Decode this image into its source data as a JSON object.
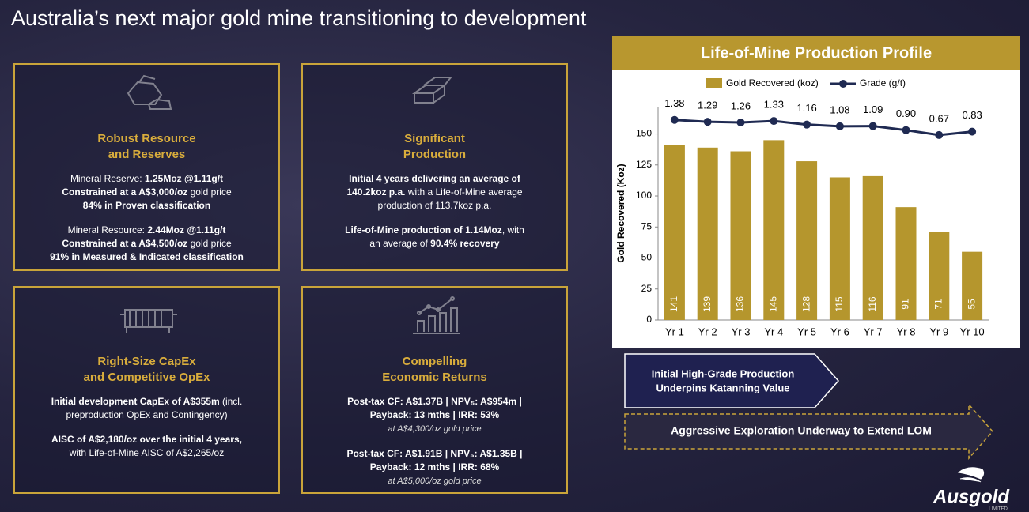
{
  "header": {
    "title": "Australia’s next major gold mine transitioning to development"
  },
  "cards": [
    {
      "title_lines": [
        "Robust Resource",
        "and Reserves"
      ],
      "paragraphs": [
        [
          [
            {
              "text": "Mineral Reserve: "
            },
            {
              "text": "1.25Moz @1.11g/t",
              "bold": true
            }
          ],
          [
            {
              "text": "Constrained at a A$3,000/oz",
              "bold": true
            },
            {
              "text": " gold price"
            }
          ],
          [
            {
              "text": "84% in Proven classification",
              "bold": true
            }
          ]
        ],
        [
          [
            {
              "text": "Mineral Resource: "
            },
            {
              "text": "2.44Moz @1.11g/t",
              "bold": true
            }
          ],
          [
            {
              "text": "Constrained at a A$4,500/oz",
              "bold": true
            },
            {
              "text": " gold price"
            }
          ],
          [
            {
              "text": "91% in Measured & Indicated classification",
              "bold": true
            }
          ]
        ]
      ]
    },
    {
      "title_lines": [
        "Significant",
        "Production"
      ],
      "paragraphs": [
        [
          [
            {
              "text": "Initial 4 years delivering an average of",
              "bold": true
            }
          ],
          [
            {
              "text": "140.2koz p.a.",
              "bold": true
            },
            {
              "text": " with a Life-of-Mine average"
            }
          ],
          [
            {
              "text": "production of 113.7koz p.a."
            }
          ]
        ],
        [
          [
            {
              "text": "Life-of-Mine production of 1.14Moz",
              "bold": true
            },
            {
              "text": ", with"
            }
          ],
          [
            {
              "text": "an average of "
            },
            {
              "text": "90.4% recovery",
              "bold": true
            }
          ]
        ]
      ]
    },
    {
      "title_lines": [
        "Right-Size CapEx",
        "and Competitive OpEx"
      ],
      "paragraphs": [
        [
          [
            {
              "text": "Initial development CapEx of A$355m",
              "bold": true
            },
            {
              "text": " (incl."
            }
          ],
          [
            {
              "text": "preproduction OpEx and Contingency)"
            }
          ]
        ],
        [
          [
            {
              "text": "AISC of A$2,180/oz over the initial 4 years,",
              "bold": true
            }
          ],
          [
            {
              "text": "with Life-of-Mine AISC of  A$2,265/oz"
            }
          ]
        ]
      ]
    },
    {
      "title_lines": [
        "Compelling",
        "Economic Returns"
      ],
      "paragraphs": [
        [
          [
            {
              "text": "Post-tax CF: A$1.37B | NPV₅: A$954m |",
              "bold": true
            }
          ],
          [
            {
              "text": "Payback: 13 mths | IRR: 53%",
              "bold": true
            }
          ],
          [
            {
              "text": "at A$4,300/oz gold price",
              "italic": true
            }
          ]
        ],
        [
          [
            {
              "text": "Post-tax CF: A$1.91B | NPV₅: A$1.35B |",
              "bold": true
            }
          ],
          [
            {
              "text": "Payback: 12 mths | IRR: 68%",
              "bold": true
            }
          ],
          [
            {
              "text": "at A$5,000/oz gold price",
              "italic": true
            }
          ]
        ]
      ]
    }
  ],
  "chart_data": {
    "type": "bar",
    "title": "Life-of-Mine Production Profile",
    "categories": [
      "Yr 1",
      "Yr 2",
      "Yr 3",
      "Yr 4",
      "Yr 5",
      "Yr 6",
      "Yr 7",
      "Yr 8",
      "Yr 9",
      "Yr 10"
    ],
    "series": [
      {
        "name": "Gold Recovered (koz)",
        "color": "#b5962d",
        "values": [
          141,
          139,
          136,
          145,
          128,
          115,
          116,
          91,
          71,
          55
        ]
      },
      {
        "name": "Grade (g/t)",
        "type": "line",
        "axis": "y2",
        "color": "#1f2a52",
        "values": [
          1.38,
          1.29,
          1.26,
          1.33,
          1.16,
          1.08,
          1.09,
          0.9,
          0.67,
          0.83
        ],
        "value_labels": [
          "1.38",
          "1.29",
          "1.26",
          "1.33",
          "1.16",
          "1.08",
          "1.09",
          "0.90",
          "0.67",
          "0.83"
        ]
      }
    ],
    "ylabel": "Gold Recovered (Koz)",
    "ylim": [
      0,
      172
    ],
    "yticks": [
      0,
      25,
      50,
      75,
      100,
      125,
      150
    ],
    "y2lim": [
      -8,
      2
    ]
  },
  "callouts": [
    "Initial High-Grade Production",
    "Underpins Katanning Value",
    "Aggressive Exploration Underway to Extend LOM"
  ],
  "logo": {
    "name": "Ausgold",
    "sub": "LIMITED"
  }
}
